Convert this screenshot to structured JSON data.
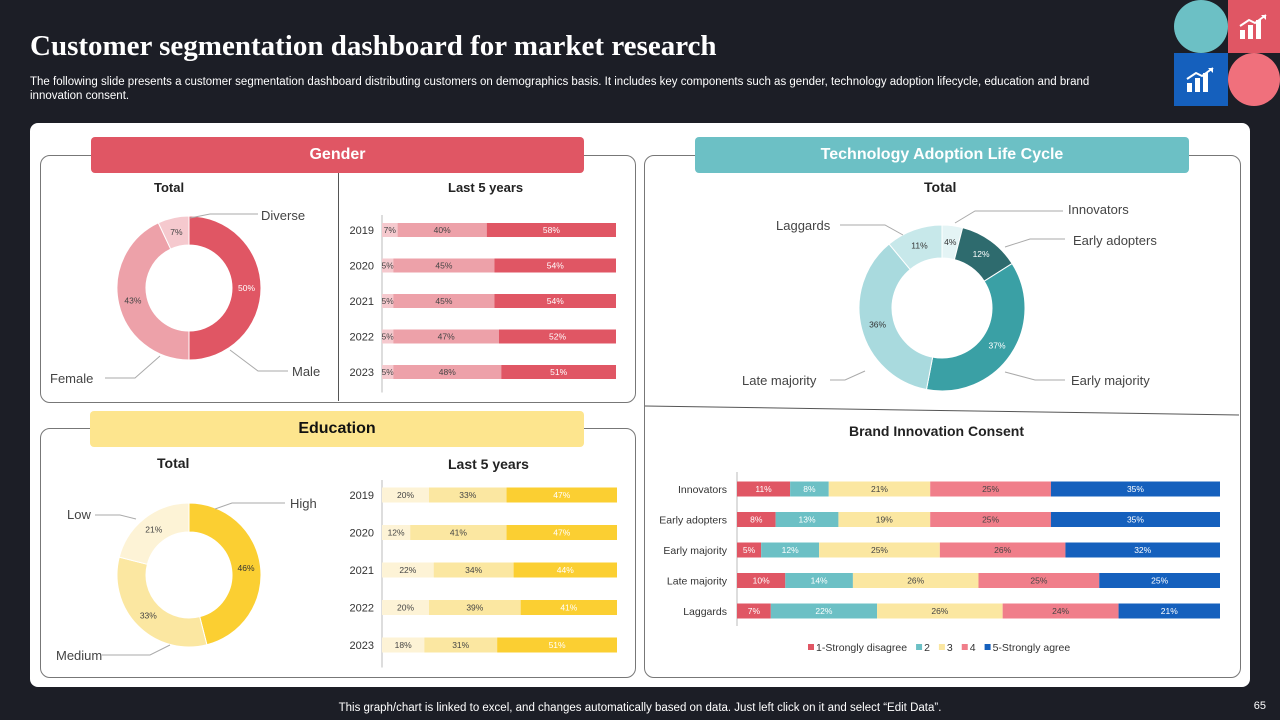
{
  "title": "Customer segmentation dashboard for market research",
  "subtitle": "The following slide presents a customer segmentation dashboard distributing customers on demographics basis. It includes key components such as gender, technology adoption lifecycle, education and brand innovation consent.",
  "footer": "This graph/chart is linked to excel,  and changes automatically based on data. Just left click on it and select “Edit Data”.",
  "page_number": "65",
  "colors": {
    "red": "#e05664",
    "pink": "#eda1a9",
    "lightpink": "#f5c9ce",
    "teal": "#6cc0c5",
    "darkteal": "#2e6b6e",
    "midteal": "#3aa0a5",
    "paleteal": "#a9dade",
    "yellow": "#fbcf32",
    "lightyellow": "#fbe7a1",
    "paleyellow": "#fdf3d6",
    "blue": "#1560bd"
  },
  "icons": [
    "chart-growth-icon",
    "chart-growth-icon"
  ],
  "gender": {
    "header": "Gender",
    "total_label": "Total",
    "recent_label": "Last 5 years",
    "callouts": {
      "diverse": "Diverse",
      "male": "Male",
      "female": "Female"
    }
  },
  "tech": {
    "header": "Technology Adoption Life Cycle",
    "total_label": "Total",
    "callouts": {
      "innovators": "Innovators",
      "early_adopters": "Early adopters",
      "early_majority": "Early majority",
      "late_majority": "Late majority",
      "laggards": "Laggards"
    }
  },
  "education": {
    "header": "Education",
    "total_label": "Total",
    "recent_label": "Last 5 years",
    "callouts": {
      "high": "High",
      "low": "Low",
      "medium": "Medium"
    }
  },
  "brand": {
    "title": "Brand Innovation Consent"
  },
  "chart_data": [
    {
      "id": "gender_total",
      "type": "pie",
      "title": "Total",
      "categories": [
        "Male",
        "Female",
        "Diverse"
      ],
      "values": [
        50,
        43,
        7
      ],
      "labels": [
        "50%",
        "43%",
        "7%"
      ]
    },
    {
      "id": "gender_years",
      "type": "bar",
      "stacked": true,
      "orientation": "horizontal",
      "title": "Last 5 years",
      "categories": [
        "2019",
        "2020",
        "2021",
        "2022",
        "2023"
      ],
      "series": [
        {
          "values": [
            7,
            5,
            5,
            5,
            5
          ],
          "labels": [
            "7%",
            "5%",
            "5%",
            "5%",
            "5%"
          ]
        },
        {
          "values": [
            40,
            45,
            45,
            47,
            48
          ],
          "labels": [
            "40%",
            "45%",
            "45%",
            "47%",
            "48%"
          ]
        },
        {
          "values": [
            58,
            54,
            54,
            52,
            51
          ],
          "labels": [
            "58%",
            "54%",
            "54%",
            "52%",
            "51%"
          ]
        }
      ]
    },
    {
      "id": "tech_total",
      "type": "pie",
      "title": "Total",
      "categories": [
        "Innovators",
        "Early adopters",
        "Early majority",
        "Late majority",
        "Laggards"
      ],
      "values": [
        4,
        12,
        37,
        36,
        11
      ],
      "labels": [
        "4%",
        "12%",
        "37%",
        "36%",
        "11%"
      ]
    },
    {
      "id": "education_total",
      "type": "pie",
      "title": "Total",
      "categories": [
        "High",
        "Medium",
        "Low"
      ],
      "values": [
        46,
        33,
        21
      ],
      "labels": [
        "46%",
        "33%",
        "21%"
      ]
    },
    {
      "id": "education_years",
      "type": "bar",
      "stacked": true,
      "orientation": "horizontal",
      "title": "Last 5 years",
      "categories": [
        "2019",
        "2020",
        "2021",
        "2022",
        "2023"
      ],
      "series": [
        {
          "values": [
            20,
            12,
            22,
            20,
            18
          ],
          "labels": [
            "20%",
            "12%",
            "22%",
            "20%",
            "18%"
          ]
        },
        {
          "values": [
            33,
            41,
            34,
            39,
            31
          ],
          "labels": [
            "33%",
            "41%",
            "34%",
            "39%",
            "31%"
          ]
        },
        {
          "values": [
            47,
            47,
            44,
            41,
            51
          ],
          "labels": [
            "47%",
            "47%",
            "44%",
            "41%",
            "51%"
          ]
        }
      ]
    },
    {
      "id": "brand_consent",
      "type": "bar",
      "stacked": true,
      "orientation": "horizontal",
      "title": "Brand Innovation Consent",
      "categories": [
        "Innovators",
        "Early adopters",
        "Early majority",
        "Late majority",
        "Laggards"
      ],
      "series": [
        {
          "name": "1-Strongly disagree",
          "values": [
            11,
            8,
            5,
            10,
            7
          ]
        },
        {
          "name": "2",
          "values": [
            8,
            13,
            12,
            14,
            22
          ]
        },
        {
          "name": "3",
          "values": [
            21,
            19,
            25,
            26,
            26
          ]
        },
        {
          "name": "4",
          "values": [
            25,
            25,
            26,
            25,
            24
          ]
        },
        {
          "name": "5-Strongly agree",
          "values": [
            35,
            35,
            32,
            25,
            21
          ]
        }
      ],
      "labels": [
        [
          "11%",
          "8%",
          "5%",
          "10%",
          "7%"
        ],
        [
          "8%",
          "13%",
          "12%",
          "14%",
          "22%"
        ],
        [
          "21%",
          "19%",
          "25%",
          "26%",
          "26%"
        ],
        [
          "25%",
          "25%",
          "26%",
          "25%",
          "24%"
        ],
        [
          "35%",
          "35%",
          "32%",
          "25%",
          "21%"
        ]
      ],
      "legend": "bottom"
    }
  ]
}
